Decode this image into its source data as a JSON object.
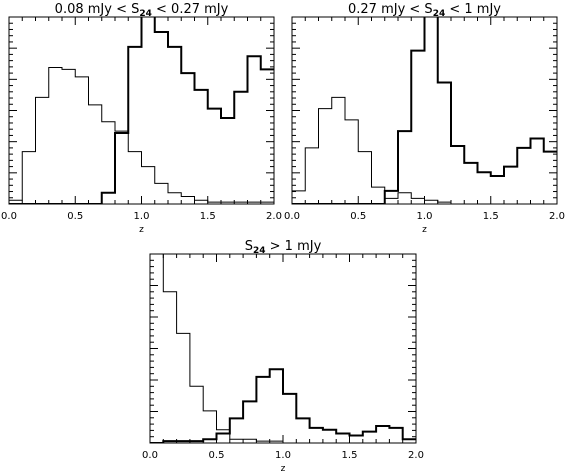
{
  "chart_data": [
    {
      "type": "histogram",
      "title_parts": [
        "0.08 mJy < S",
        "24",
        " < 0.27 mJy"
      ],
      "xlabel": "z",
      "xlim": [
        0,
        2
      ],
      "ylim": [
        0,
        1
      ],
      "xticks": [
        0.0,
        0.5,
        1.0,
        1.5,
        2.0
      ],
      "xtick_labels": [
        "0.0",
        "0.5",
        "1.0",
        "1.5",
        "2.0"
      ],
      "y_tick_labels_shown": false,
      "bin_edges": [
        0.0,
        0.1,
        0.2,
        0.3,
        0.4,
        0.5,
        0.6,
        0.7,
        0.8,
        0.9,
        1.0,
        1.1,
        1.2,
        1.3,
        1.4,
        1.5,
        1.6,
        1.7,
        1.8,
        1.9,
        2.0
      ],
      "series": [
        {
          "style": "thin",
          "values": [
            0.02,
            0.28,
            0.57,
            0.73,
            0.72,
            0.68,
            0.53,
            0.44,
            0.39,
            0.28,
            0.2,
            0.11,
            0.06,
            0.04,
            0.02,
            0.01,
            0.01,
            0.01,
            0.01,
            0.01
          ]
        },
        {
          "style": "thick",
          "values": [
            0.0,
            0.0,
            0.0,
            0.0,
            0.0,
            0.0,
            0.0,
            0.06,
            0.38,
            0.84,
            1.02,
            0.92,
            0.84,
            0.7,
            0.61,
            0.51,
            0.46,
            0.6,
            0.79,
            0.72
          ]
        }
      ]
    },
    {
      "type": "histogram",
      "title_parts": [
        "0.27 mJy < S",
        "24",
        " < 1 mJy"
      ],
      "xlabel": "z",
      "xlim": [
        0,
        2
      ],
      "ylim": [
        0,
        1
      ],
      "xticks": [
        0.0,
        0.5,
        1.0,
        1.5,
        2.0
      ],
      "xtick_labels": [
        "0.0",
        "0.5",
        "1.0",
        "1.5",
        "2.0"
      ],
      "y_tick_labels_shown": false,
      "bin_edges": [
        0.0,
        0.1,
        0.2,
        0.3,
        0.4,
        0.5,
        0.6,
        0.7,
        0.8,
        0.9,
        1.0,
        1.1,
        1.2,
        1.3,
        1.4,
        1.5,
        1.6,
        1.7,
        1.8,
        1.9,
        2.0
      ],
      "series": [
        {
          "style": "thin",
          "values": [
            0.07,
            0.3,
            0.51,
            0.57,
            0.45,
            0.28,
            0.09,
            0.03,
            0.06,
            0.03,
            0.02,
            0.01,
            0.0,
            0.0,
            0.0,
            0.0,
            0.0,
            0.0,
            0.0,
            0.0
          ]
        },
        {
          "style": "thick",
          "values": [
            0.0,
            0.0,
            0.0,
            0.0,
            0.0,
            0.0,
            0.0,
            0.07,
            0.39,
            0.82,
            1.01,
            0.65,
            0.31,
            0.22,
            0.17,
            0.15,
            0.2,
            0.3,
            0.35,
            0.28
          ]
        }
      ]
    },
    {
      "type": "histogram",
      "title_parts": [
        "S",
        "24",
        " > 1 mJy"
      ],
      "xlabel": "z",
      "xlim": [
        0,
        2
      ],
      "ylim": [
        0,
        1
      ],
      "xticks": [
        0.0,
        0.5,
        1.0,
        1.5,
        2.0
      ],
      "xtick_labels": [
        "0.0",
        "0.5",
        "1.0",
        "1.5",
        "2.0"
      ],
      "y_tick_labels_shown": false,
      "bin_edges": [
        0.0,
        0.1,
        0.2,
        0.3,
        0.4,
        0.5,
        0.6,
        0.7,
        0.8,
        0.9,
        1.0,
        1.1,
        1.2,
        1.3,
        1.4,
        1.5,
        1.6,
        1.7,
        1.8,
        1.9,
        2.0
      ],
      "series": [
        {
          "style": "thin",
          "values": [
            1.0,
            0.8,
            0.58,
            0.3,
            0.17,
            0.07,
            0.02,
            0.02,
            0.01,
            0.01,
            0.0,
            0.0,
            0.0,
            0.0,
            0.0,
            0.0,
            0.0,
            0.0,
            0.0,
            0.0
          ]
        },
        {
          "style": "thick",
          "values": [
            0.0,
            0.01,
            0.01,
            0.01,
            0.02,
            0.05,
            0.13,
            0.22,
            0.35,
            0.39,
            0.26,
            0.13,
            0.08,
            0.07,
            0.05,
            0.04,
            0.06,
            0.09,
            0.08,
            0.02
          ]
        }
      ]
    }
  ]
}
